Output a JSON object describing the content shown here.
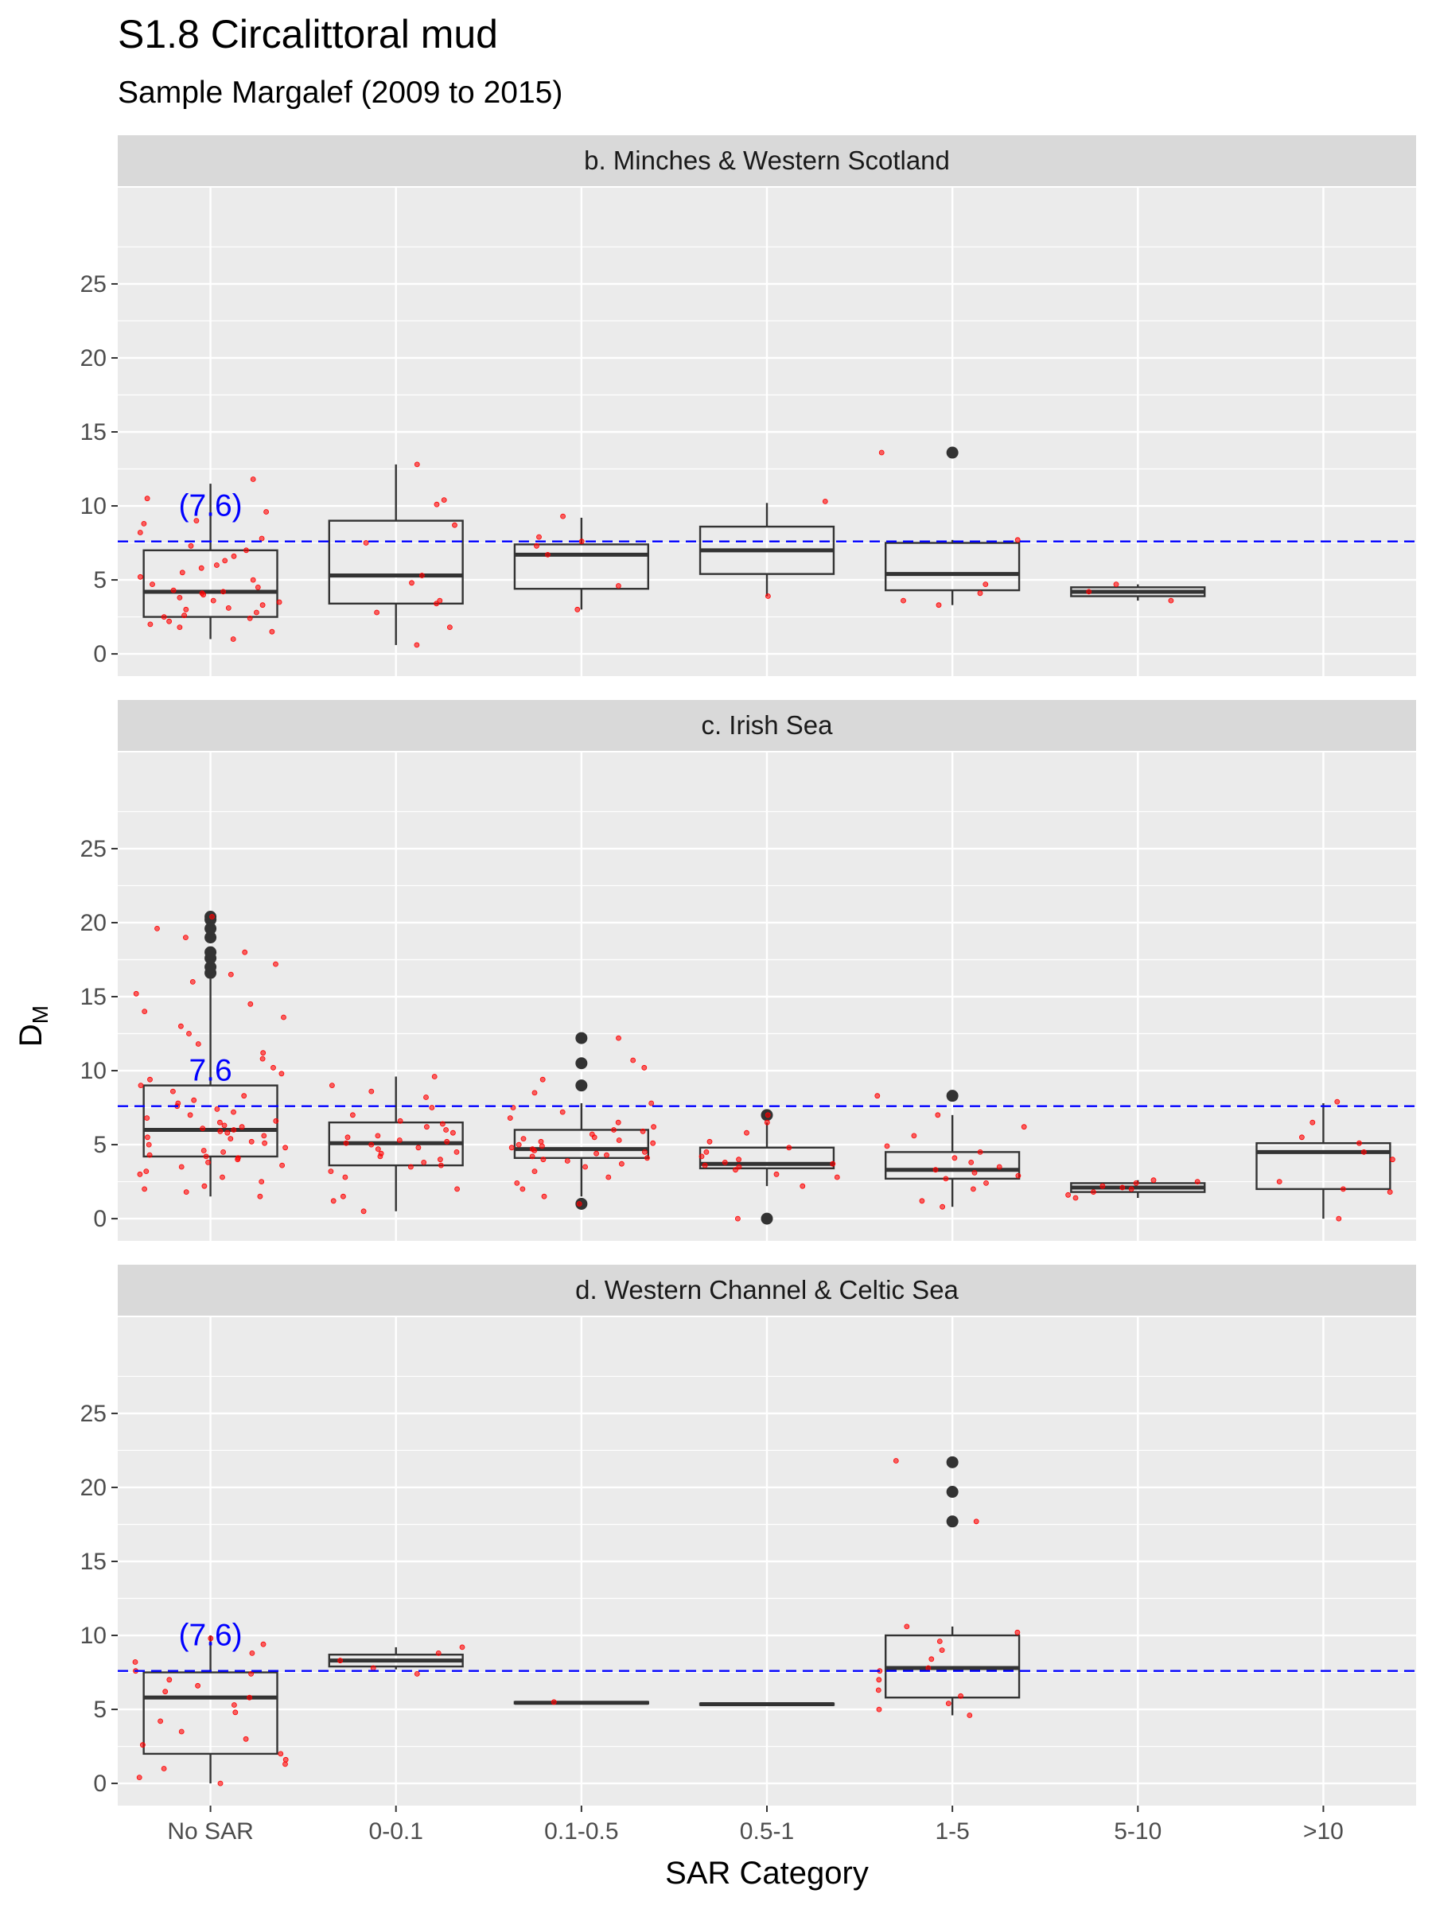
{
  "title": "S1.8 Circalittoral mud",
  "subtitle": "Sample Margalef (2009 to 2015)",
  "chart_data": {
    "type": "boxplot",
    "xlabel": "SAR Category",
    "ylabel_main": "D",
    "ylabel_sub": "M",
    "categories": [
      "No SAR",
      "0-0.1",
      "0.1-0.5",
      "0.5-1",
      "1-5",
      "5-10",
      ">10"
    ],
    "y_ticks": [
      0,
      5,
      10,
      15,
      20,
      25
    ],
    "ylim": [
      -1.5,
      31.5
    ],
    "grid": true,
    "colors": {
      "reference_line": "#0000ff",
      "points": "#ff0000",
      "box_stroke": "#333333",
      "panel_bg": "#ebebeb",
      "strip_bg": "#d9d9d9",
      "grid": "#ffffff"
    },
    "reference_value": 7.6,
    "panels": [
      {
        "strip": "b. Minches & Western Scotland",
        "reference_label": "(7.6)",
        "boxes": [
          {
            "category": "No SAR",
            "min": 1.0,
            "q1": 2.5,
            "median": 4.2,
            "q3": 7.0,
            "max": 11.5,
            "outliers": [],
            "points": [
              1.0,
              1.5,
              1.8,
              2.0,
              2.2,
              2.4,
              2.5,
              2.6,
              2.8,
              3.0,
              3.1,
              3.3,
              3.5,
              3.6,
              3.8,
              4.0,
              4.1,
              4.2,
              4.3,
              4.5,
              4.7,
              5.0,
              5.2,
              5.5,
              5.8,
              6.0,
              6.3,
              6.6,
              7.0,
              7.3,
              7.8,
              8.2,
              8.8,
              9.0,
              9.6,
              10.5,
              11.8
            ]
          },
          {
            "category": "0-0.1",
            "min": 0.6,
            "q1": 3.4,
            "median": 5.3,
            "q3": 9.0,
            "max": 12.8,
            "outliers": [],
            "points": [
              0.6,
              1.8,
              2.8,
              3.4,
              3.6,
              4.8,
              5.3,
              7.5,
              8.7,
              10.1,
              10.4,
              12.8
            ]
          },
          {
            "category": "0.1-0.5",
            "min": 3.0,
            "q1": 4.4,
            "median": 6.7,
            "q3": 7.4,
            "max": 9.2,
            "outliers": [],
            "points": [
              3.0,
              4.6,
              6.7,
              7.3,
              7.6,
              7.9,
              9.3
            ]
          },
          {
            "category": "0.5-1",
            "min": 3.9,
            "q1": 5.4,
            "median": 7.0,
            "q3": 8.6,
            "max": 10.2,
            "outliers": [],
            "points": [
              3.9,
              10.3
            ]
          },
          {
            "category": "1-5",
            "min": 3.3,
            "q1": 4.3,
            "median": 5.4,
            "q3": 7.5,
            "max": 7.7,
            "outliers": [
              13.6
            ],
            "points": [
              3.3,
              3.6,
              4.1,
              4.7,
              7.7,
              13.6
            ]
          },
          {
            "category": "5-10",
            "min": 3.6,
            "q1": 3.9,
            "median": 4.2,
            "q3": 4.5,
            "max": 4.7,
            "outliers": [],
            "points": [
              3.6,
              4.2,
              4.7
            ]
          }
        ]
      },
      {
        "strip": "c. Irish Sea",
        "reference_label": "7.6",
        "boxes": [
          {
            "category": "No SAR",
            "min": 1.5,
            "q1": 4.2,
            "median": 6.0,
            "q3": 9.0,
            "max": 16.2,
            "outliers": [
              16.6,
              17.0,
              17.6,
              18.0,
              19.0,
              19.6,
              20.2,
              20.4
            ],
            "points": [
              1.5,
              1.8,
              2.0,
              2.2,
              2.5,
              2.8,
              3.0,
              3.2,
              3.5,
              3.6,
              3.8,
              4.0,
              4.1,
              4.2,
              4.3,
              4.5,
              4.6,
              4.8,
              5.0,
              5.1,
              5.2,
              5.4,
              5.5,
              5.6,
              5.8,
              5.9,
              6.0,
              6.1,
              6.2,
              6.3,
              6.5,
              6.6,
              6.8,
              7.0,
              7.2,
              7.4,
              7.6,
              7.8,
              8.0,
              8.3,
              8.6,
              9.0,
              9.4,
              9.8,
              10.2,
              10.8,
              11.2,
              11.8,
              12.5,
              13.0,
              13.6,
              14.0,
              14.5,
              15.2,
              16.0,
              16.5,
              17.2,
              18.0,
              19.0,
              19.6,
              20.4
            ]
          },
          {
            "category": "0-0.1",
            "min": 0.5,
            "q1": 3.6,
            "median": 5.1,
            "q3": 6.5,
            "max": 9.6,
            "outliers": [],
            "points": [
              0.5,
              1.2,
              1.5,
              2.0,
              2.8,
              3.2,
              3.5,
              3.6,
              3.8,
              4.0,
              4.2,
              4.4,
              4.5,
              4.7,
              4.8,
              5.0,
              5.1,
              5.2,
              5.3,
              5.5,
              5.6,
              5.8,
              6.0,
              6.2,
              6.4,
              6.6,
              7.0,
              7.5,
              8.2,
              8.6,
              9.0,
              9.6
            ]
          },
          {
            "category": "0.1-0.5",
            "min": 1.5,
            "q1": 4.1,
            "median": 4.7,
            "q3": 6.0,
            "max": 7.8,
            "outliers": [
              1.0,
              9.0,
              10.5,
              12.2
            ],
            "points": [
              1.0,
              1.5,
              2.0,
              2.4,
              2.8,
              3.2,
              3.5,
              3.7,
              3.9,
              4.0,
              4.1,
              4.2,
              4.3,
              4.4,
              4.5,
              4.6,
              4.7,
              4.8,
              4.9,
              5.0,
              5.1,
              5.2,
              5.3,
              5.4,
              5.5,
              5.7,
              5.9,
              6.0,
              6.2,
              6.5,
              6.8,
              7.2,
              7.5,
              7.8,
              8.5,
              9.4,
              10.2,
              10.7,
              12.2
            ]
          },
          {
            "category": "0.5-1",
            "min": 2.2,
            "q1": 3.4,
            "median": 3.7,
            "q3": 4.8,
            "max": 6.5,
            "outliers": [
              0.0,
              7.0
            ],
            "points": [
              0.0,
              2.2,
              2.8,
              3.0,
              3.3,
              3.5,
              3.6,
              3.7,
              3.8,
              4.0,
              4.2,
              4.5,
              4.8,
              5.2,
              5.8,
              6.5,
              7.0
            ]
          },
          {
            "category": "1-5",
            "min": 0.8,
            "q1": 2.7,
            "median": 3.3,
            "q3": 4.5,
            "max": 7.0,
            "outliers": [
              8.3
            ],
            "points": [
              0.8,
              1.2,
              2.0,
              2.4,
              2.7,
              2.9,
              3.1,
              3.3,
              3.5,
              3.8,
              4.1,
              4.5,
              4.9,
              5.6,
              6.2,
              7.0,
              8.3
            ]
          },
          {
            "category": "5-10",
            "min": 1.4,
            "q1": 1.8,
            "median": 2.1,
            "q3": 2.4,
            "max": 2.6,
            "outliers": [],
            "points": [
              1.4,
              1.6,
              1.8,
              2.0,
              2.1,
              2.2,
              2.4,
              2.5,
              2.6
            ]
          },
          {
            "category": ">10",
            "min": 0.0,
            "q1": 2.0,
            "median": 4.5,
            "q3": 5.1,
            "max": 7.8,
            "outliers": [],
            "points": [
              0.0,
              1.8,
              2.0,
              2.5,
              4.0,
              4.5,
              5.1,
              5.5,
              6.5,
              7.9
            ]
          }
        ]
      },
      {
        "strip": "d. Western Channel & Celtic Sea",
        "reference_label": "(7.6)",
        "boxes": [
          {
            "category": "No SAR",
            "min": 0.0,
            "q1": 2.0,
            "median": 5.8,
            "q3": 7.5,
            "max": 10.0,
            "outliers": [],
            "points": [
              0.0,
              0.4,
              1.0,
              1.3,
              1.6,
              2.0,
              2.6,
              3.0,
              3.5,
              4.2,
              4.8,
              5.3,
              5.8,
              6.2,
              6.6,
              7.0,
              7.4,
              7.6,
              8.2,
              8.8,
              9.4,
              9.8
            ]
          },
          {
            "category": "0-0.1",
            "min": 7.7,
            "q1": 7.9,
            "median": 8.3,
            "q3": 8.7,
            "max": 9.2,
            "outliers": [],
            "points": [
              7.4,
              7.8,
              8.3,
              8.8,
              9.2
            ]
          },
          {
            "category": "0.1-0.5",
            "min": 5.4,
            "q1": 5.4,
            "median": 5.45,
            "q3": 5.5,
            "max": 5.5,
            "outliers": [],
            "points": [
              5.5
            ]
          },
          {
            "category": "0.5-1",
            "min": 5.3,
            "q1": 5.3,
            "median": 5.35,
            "q3": 5.4,
            "max": 5.4,
            "outliers": [],
            "points": []
          },
          {
            "category": "1-5",
            "min": 4.6,
            "q1": 5.8,
            "median": 7.8,
            "q3": 10.0,
            "max": 10.6,
            "outliers": [
              17.7,
              19.7,
              21.7
            ],
            "points": [
              4.6,
              5.0,
              5.4,
              5.9,
              6.3,
              7.0,
              7.6,
              7.8,
              8.4,
              9.0,
              9.6,
              10.2,
              10.6,
              17.7,
              21.8
            ]
          }
        ]
      }
    ]
  }
}
